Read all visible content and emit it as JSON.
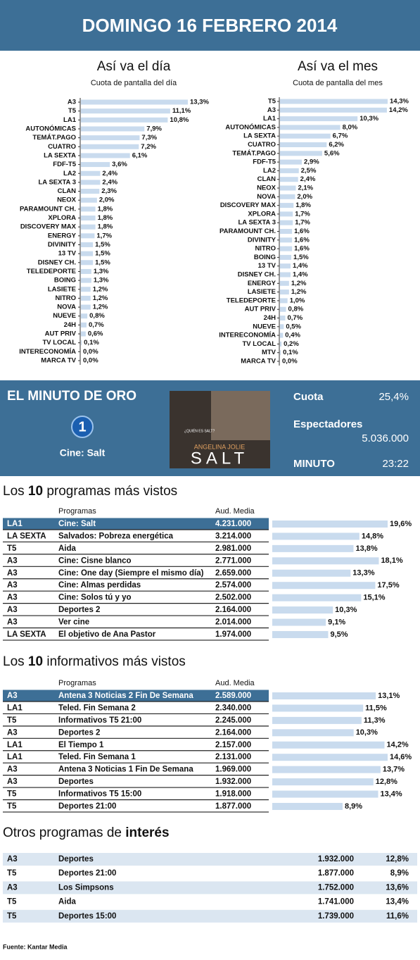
{
  "header": {
    "title": "DOMINGO 16 FEBRERO 2014"
  },
  "chart_data": [
    {
      "type": "hbar",
      "title": "Así va el día",
      "subtitle": "Cuota de pantalla del día",
      "color": "#c9dbee",
      "categories": [
        "A3",
        "T5",
        "LA1",
        "AUTONÓMICAS",
        "TEMÁT.PAGO",
        "CUATRO",
        "LA SEXTA",
        "FDF-T5",
        "LA2",
        "LA SEXTA 3",
        "CLAN",
        "NEOX",
        "PARAMOUNT CH.",
        "XPLORA",
        "DISCOVERY MAX",
        "ENERGY",
        "DIVINITY",
        "13 TV",
        "DISNEY CH.",
        "TELEDEPORTE",
        "BOING",
        "LASIETE",
        "NITRO",
        "NOVA",
        "NUEVE",
        "24H",
        "AUT PRIV",
        "TV LOCAL",
        "INTERECONOMÍA",
        "MARCA TV"
      ],
      "values": [
        13.3,
        11.1,
        10.8,
        7.9,
        7.3,
        7.2,
        6.1,
        3.6,
        2.4,
        2.4,
        2.3,
        2.0,
        1.8,
        1.8,
        1.8,
        1.7,
        1.5,
        1.5,
        1.5,
        1.3,
        1.3,
        1.2,
        1.2,
        1.2,
        0.8,
        0.7,
        0.6,
        0.1,
        0.0,
        0.0
      ],
      "value_labels": [
        "13,3%",
        "11,1%",
        "10,8%",
        "7,9%",
        "7,3%",
        "7,2%",
        "6,1%",
        "3,6%",
        "2,4%",
        "2,4%",
        "2,3%",
        "2,0%",
        "1,8%",
        "1,8%",
        "1,8%",
        "1,7%",
        "1,5%",
        "1,5%",
        "1,5%",
        "1,3%",
        "1,3%",
        "1,2%",
        "1,2%",
        "1,2%",
        "0,8%",
        "0,7%",
        "0,6%",
        "0,1%",
        "0,0%",
        "0,0%"
      ]
    },
    {
      "type": "hbar",
      "title": "Así va el mes",
      "subtitle": "Cuota de pantalla del mes",
      "color": "#c9dbee",
      "categories": [
        "T5",
        "A3",
        "LA1",
        "AUTONÓMICAS",
        "LA SEXTA",
        "CUATRO",
        "TEMÁT.PAGO",
        "FDF-T5",
        "LA2",
        "CLAN",
        "NEOX",
        "NOVA",
        "DISCOVERY MAX",
        "XPLORA",
        "LA SEXTA 3",
        "PARAMOUNT CH.",
        "DIVINITY",
        "NITRO",
        "BOING",
        "13 TV",
        "DISNEY CH.",
        "ENERGY",
        "LASIETE",
        "TELEDEPORTE",
        "AUT PRIV",
        "24H",
        "NUEVE",
        "INTERECONOMÍA",
        "TV LOCAL",
        "MTV",
        "MARCA TV"
      ],
      "values": [
        14.3,
        14.2,
        10.3,
        8.0,
        6.7,
        6.2,
        5.6,
        2.9,
        2.5,
        2.4,
        2.1,
        2.0,
        1.8,
        1.7,
        1.7,
        1.6,
        1.6,
        1.6,
        1.5,
        1.4,
        1.4,
        1.2,
        1.2,
        1.0,
        0.8,
        0.7,
        0.5,
        0.4,
        0.2,
        0.1,
        0.0
      ],
      "value_labels": [
        "14,3%",
        "14,2%",
        "10,3%",
        "8,0%",
        "6,7%",
        "6,2%",
        "5,6%",
        "2,9%",
        "2,5%",
        "2,4%",
        "2,1%",
        "2,0%",
        "1,8%",
        "1,7%",
        "1,7%",
        "1,6%",
        "1,6%",
        "1,6%",
        "1,5%",
        "1,4%",
        "1,4%",
        "1,2%",
        "1,2%",
        "1,0%",
        "0,8%",
        "0,7%",
        "0,5%",
        "0,4%",
        "0,2%",
        "0,1%",
        "0,0%"
      ]
    },
    {
      "type": "hbar",
      "color": "#c9dbee",
      "values": [
        19.6,
        14.8,
        13.8,
        18.1,
        13.3,
        17.5,
        15.1,
        10.3,
        9.1,
        9.5
      ],
      "value_labels": [
        "19,6%",
        "14,8%",
        "13,8%",
        "18,1%",
        "13,3%",
        "17,5%",
        "15,1%",
        "10,3%",
        "9,1%",
        "9,5%"
      ]
    },
    {
      "type": "hbar",
      "color": "#c9dbee",
      "values": [
        13.1,
        11.5,
        11.3,
        10.3,
        14.2,
        14.6,
        13.7,
        12.8,
        13.4,
        8.9
      ],
      "value_labels": [
        "13,1%",
        "11,5%",
        "11,3%",
        "10,3%",
        "14,2%",
        "14,6%",
        "13,7%",
        "12,8%",
        "13,4%",
        "8,9%"
      ]
    }
  ],
  "minuto_oro": {
    "title": "EL MINUTO DE ORO",
    "logo": "1",
    "program": "Cine: Salt",
    "poster": {
      "tagline": "¿QUIÉN ES SALT?",
      "actor": "ANGELINA JOLIE",
      "film": "SALT"
    },
    "cuota_label": "Cuota",
    "cuota": "25,4%",
    "espectadores_label": "Espectadores",
    "espectadores": "5.036.000",
    "minuto_label": "MINUTO",
    "minuto": "23:22"
  },
  "top_programs": {
    "title": [
      "Los ",
      "10",
      " programas más vistos"
    ],
    "columns": [
      "Programas",
      "Aud. Media"
    ],
    "rows": [
      [
        "LA1",
        "Cine: Salt",
        "4.231.000"
      ],
      [
        "LA SEXTA",
        "Salvados: Pobreza energética",
        "3.214.000"
      ],
      [
        "T5",
        "Aida",
        "2.981.000"
      ],
      [
        "A3",
        "Cine: Cisne blanco",
        "2.771.000"
      ],
      [
        "A3",
        "Cine: One day (Siempre el mismo día)",
        "2.659.000"
      ],
      [
        "A3",
        "Cine: Almas perdidas",
        "2.574.000"
      ],
      [
        "A3",
        "Cine: Solos tú y yo",
        "2.502.000"
      ],
      [
        "A3",
        "Deportes 2",
        "2.164.000"
      ],
      [
        "A3",
        "Ver cine",
        "2.014.000"
      ],
      [
        "LA SEXTA",
        "El objetivo de Ana Pastor",
        "1.974.000"
      ]
    ]
  },
  "top_news": {
    "title": [
      "Los ",
      "10",
      " informativos más vistos"
    ],
    "columns": [
      "Programas",
      "Aud. Media"
    ],
    "rows": [
      [
        "A3",
        "Antena 3 Noticias 2 Fin De Semana",
        "2.589.000"
      ],
      [
        "LA1",
        "Teled. Fin Semana 2",
        "2.340.000"
      ],
      [
        "T5",
        "Informativos T5 21:00",
        "2.245.000"
      ],
      [
        "A3",
        "Deportes 2",
        "2.164.000"
      ],
      [
        "LA1",
        "El Tiempo 1",
        "2.157.000"
      ],
      [
        "LA1",
        "Teled. Fin Semana 1",
        "2.131.000"
      ],
      [
        "A3",
        "Antena 3 Noticias 1 Fin De Semana",
        "1.969.000"
      ],
      [
        "A3",
        "Deportes",
        "1.932.000"
      ],
      [
        "T5",
        "Informativos T5 15:00",
        "1.918.000"
      ],
      [
        "T5",
        "Deportes 21:00",
        "1.877.000"
      ]
    ]
  },
  "others": {
    "title": [
      "Otros programas de ",
      "interés"
    ],
    "rows": [
      [
        "A3",
        "Deportes",
        "1.932.000",
        "12,8%"
      ],
      [
        "T5",
        "Deportes 21:00",
        "1.877.000",
        "8,9%"
      ],
      [
        "A3",
        "Los Simpsons",
        "1.752.000",
        "13,6%"
      ],
      [
        "T5",
        "Aida",
        "1.741.000",
        "13,4%"
      ],
      [
        "T5",
        "Deportes 15:00",
        "1.739.000",
        "11,6%"
      ]
    ]
  },
  "footer": {
    "source": "Fuente:  Kantar Media"
  }
}
